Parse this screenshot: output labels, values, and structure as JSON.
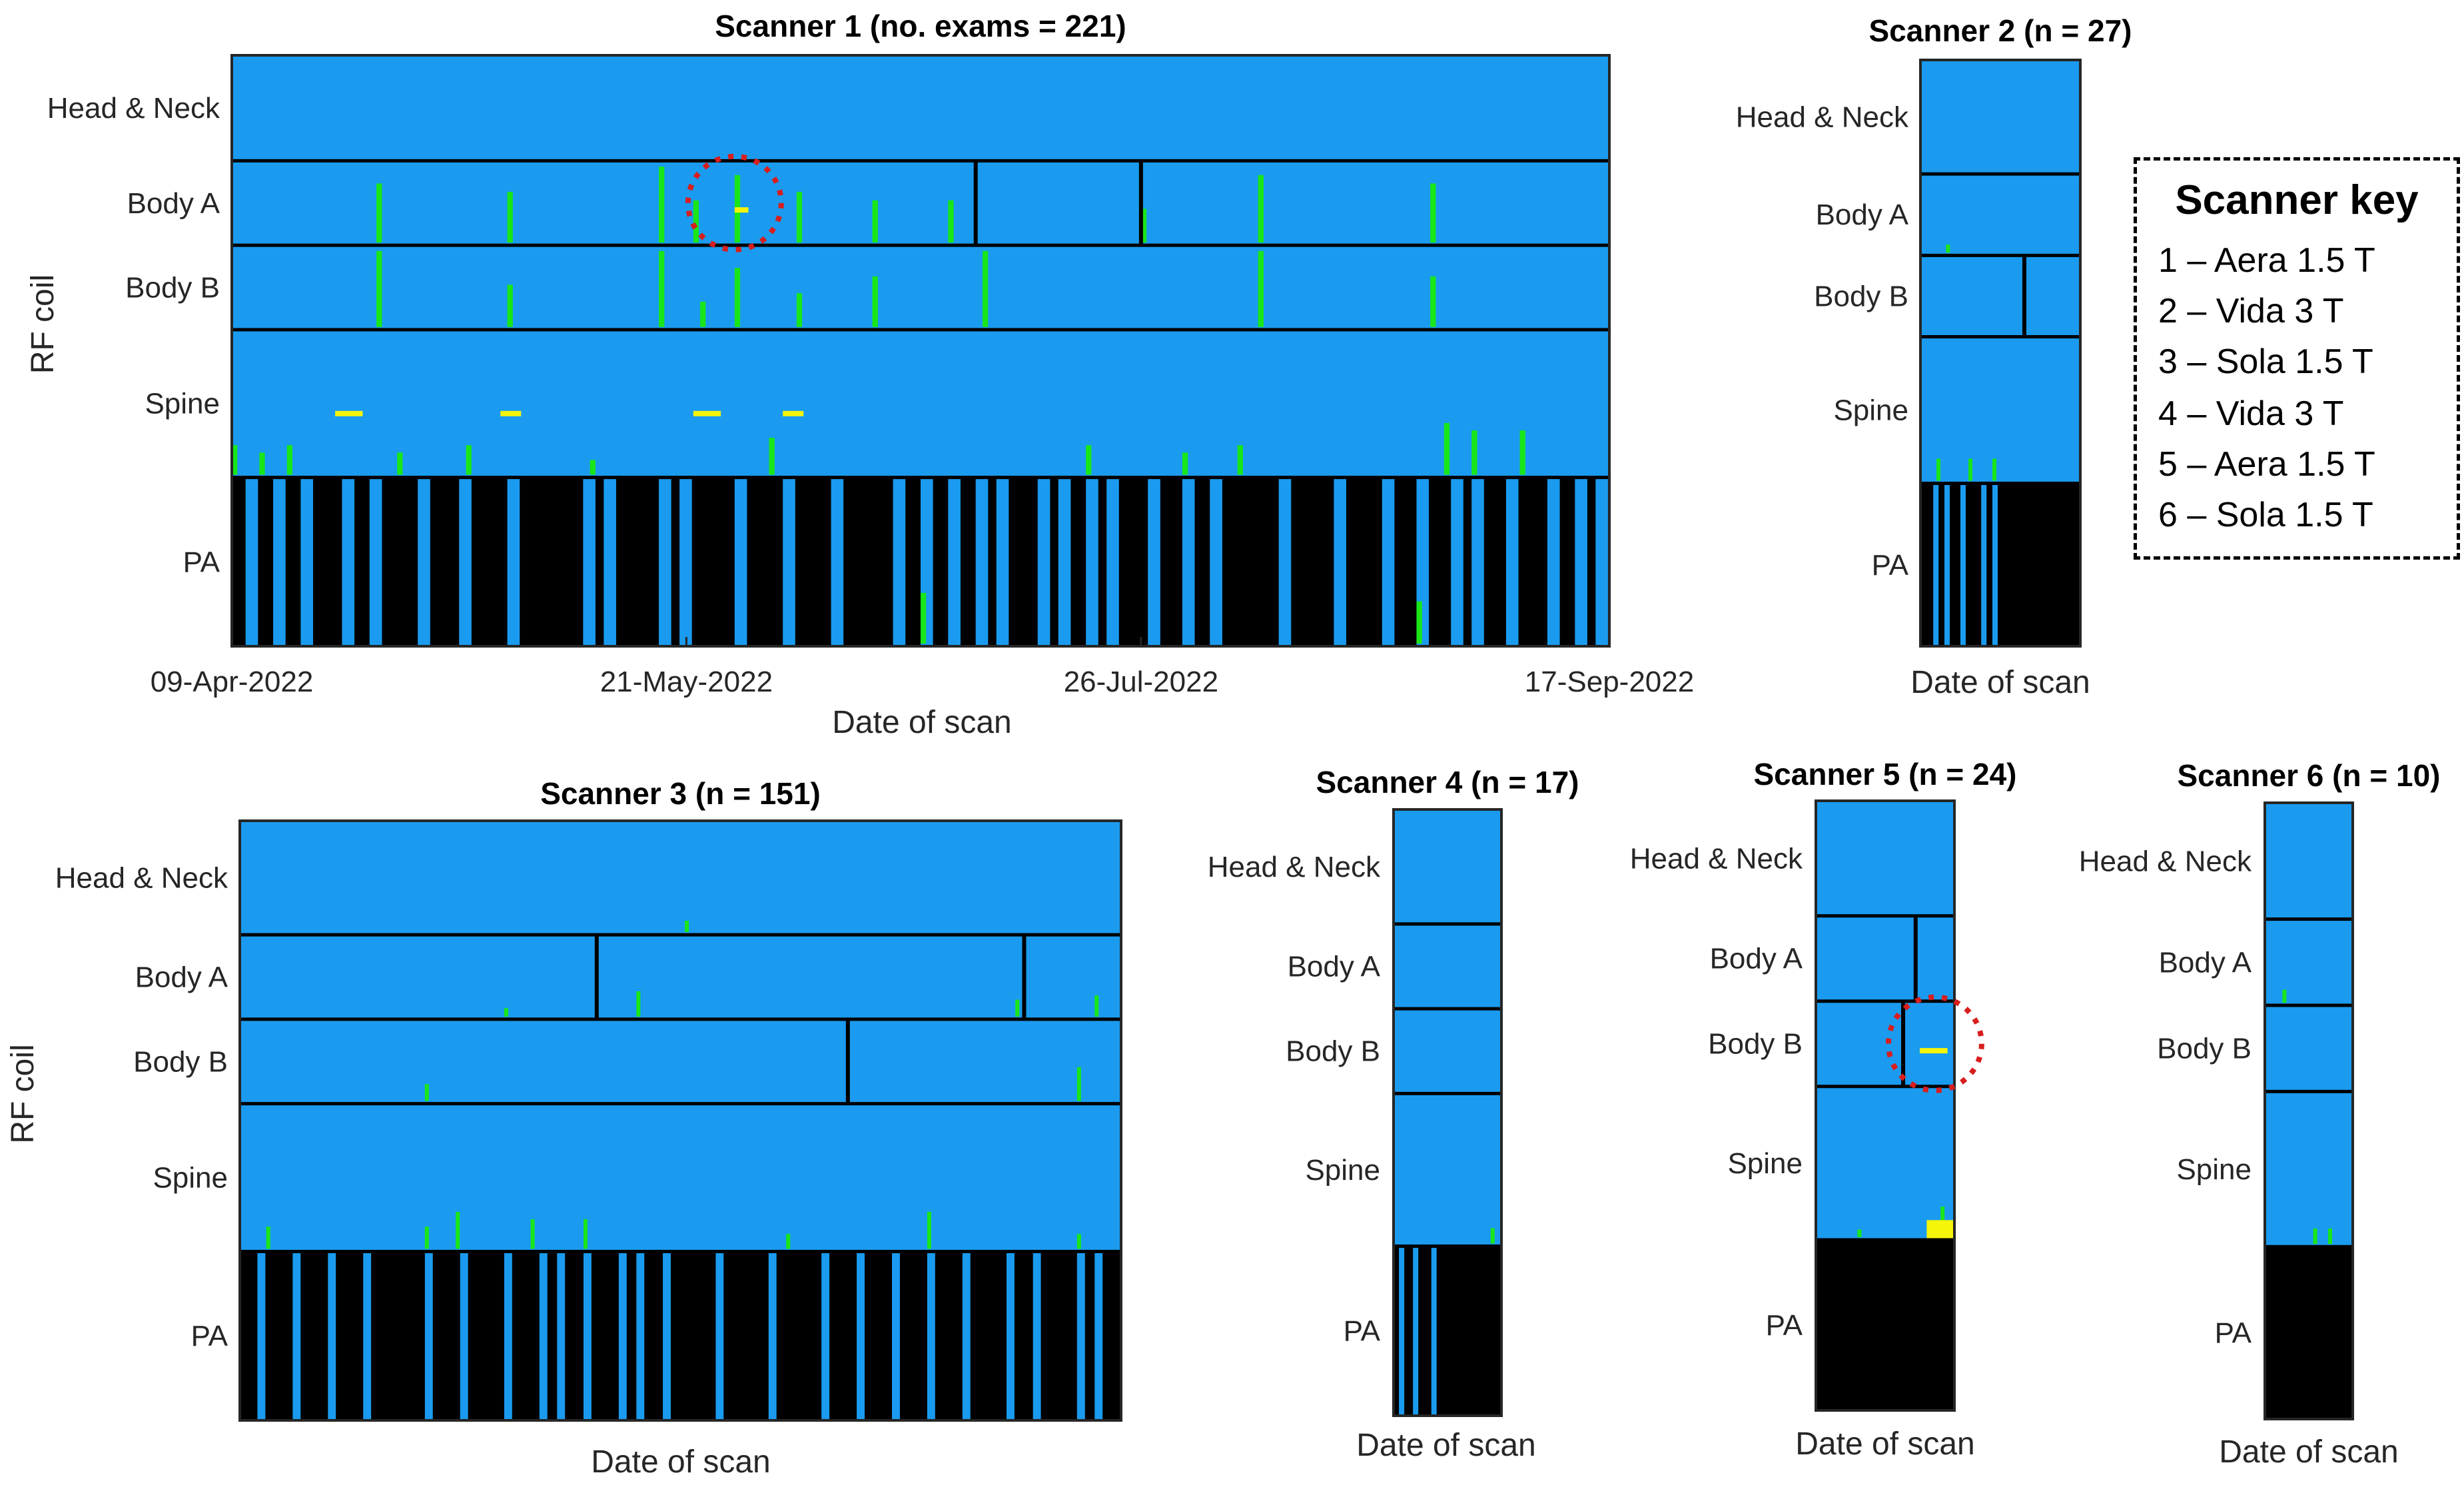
{
  "colors": {
    "background": "#1a9bef",
    "pa_background": "#000000",
    "event_green": "#19e619",
    "event_yellow": "#f5f50a",
    "divider": "#000000",
    "highlight_circle": "#d81e1e"
  },
  "chart_data": [
    {
      "type": "heatmap",
      "panel": "scanner-1",
      "title": "Scanner 1 (no. exams = 221)",
      "xlabel": "Date of scan",
      "ylabel": "RF coil",
      "rows": [
        "Head & Neck",
        "Body A",
        "Body B",
        "Spine",
        "PA"
      ],
      "row_weights": [
        1.25,
        1,
        1,
        1.75,
        2
      ],
      "x_ticks": [
        "09-Apr-2022",
        "21-May-2022",
        "26-Jul-2022",
        "17-Sep-2022"
      ],
      "x_tick_positions": [
        0,
        0.33,
        0.66,
        1.0
      ],
      "n_exams": 221,
      "pa_blue_stripes": [
        0.01,
        0.03,
        0.05,
        0.08,
        0.1,
        0.135,
        0.165,
        0.2,
        0.255,
        0.27,
        0.31,
        0.325,
        0.365,
        0.4,
        0.435,
        0.48,
        0.5,
        0.52,
        0.54,
        0.555,
        0.585,
        0.6,
        0.62,
        0.635,
        0.665,
        0.69,
        0.71,
        0.76,
        0.8,
        0.835,
        0.86,
        0.885,
        0.9,
        0.925,
        0.955,
        0.975,
        0.99
      ],
      "sub_dividers": [
        {
          "row": 1,
          "x": 0.54
        },
        {
          "row": 1,
          "x": 0.66
        }
      ],
      "green_marks": [
        {
          "row": 1,
          "x": 0.105,
          "h": 0.7
        },
        {
          "row": 2,
          "x": 0.105,
          "h": 0.9
        },
        {
          "row": 1,
          "x": 0.2,
          "h": 0.6
        },
        {
          "row": 2,
          "x": 0.2,
          "h": 0.5
        },
        {
          "row": 1,
          "x": 0.31,
          "h": 0.9
        },
        {
          "row": 2,
          "x": 0.31,
          "h": 0.9
        },
        {
          "row": 1,
          "x": 0.335,
          "h": 0.5
        },
        {
          "row": 2,
          "x": 0.34,
          "h": 0.3
        },
        {
          "row": 1,
          "x": 0.365,
          "h": 0.8
        },
        {
          "row": 2,
          "x": 0.365,
          "h": 0.7
        },
        {
          "row": 1,
          "x": 0.41,
          "h": 0.6
        },
        {
          "row": 2,
          "x": 0.41,
          "h": 0.4
        },
        {
          "row": 1,
          "x": 0.465,
          "h": 0.5
        },
        {
          "row": 2,
          "x": 0.465,
          "h": 0.6
        },
        {
          "row": 1,
          "x": 0.52,
          "h": 0.5
        },
        {
          "row": 2,
          "x": 0.545,
          "h": 0.9
        },
        {
          "row": 1,
          "x": 0.66,
          "h": 0.4
        },
        {
          "row": 1,
          "x": 0.745,
          "h": 0.8
        },
        {
          "row": 2,
          "x": 0.745,
          "h": 0.9
        },
        {
          "row": 1,
          "x": 0.87,
          "h": 0.7
        },
        {
          "row": 2,
          "x": 0.87,
          "h": 0.6
        },
        {
          "row": 3,
          "x": 0.0,
          "h": 0.2
        },
        {
          "row": 3,
          "x": 0.02,
          "h": 0.15
        },
        {
          "row": 3,
          "x": 0.04,
          "h": 0.2
        },
        {
          "row": 3,
          "x": 0.12,
          "h": 0.15
        },
        {
          "row": 3,
          "x": 0.17,
          "h": 0.2
        },
        {
          "row": 3,
          "x": 0.26,
          "h": 0.1
        },
        {
          "row": 3,
          "x": 0.39,
          "h": 0.25
        },
        {
          "row": 3,
          "x": 0.62,
          "h": 0.2
        },
        {
          "row": 3,
          "x": 0.69,
          "h": 0.15
        },
        {
          "row": 3,
          "x": 0.73,
          "h": 0.2
        },
        {
          "row": 3,
          "x": 0.88,
          "h": 0.35
        },
        {
          "row": 3,
          "x": 0.9,
          "h": 0.3
        },
        {
          "row": 3,
          "x": 0.935,
          "h": 0.3
        },
        {
          "row": 4,
          "x": 0.5,
          "h": 0.3
        },
        {
          "row": 4,
          "x": 0.86,
          "h": 0.25
        }
      ],
      "yellow_marks": [
        {
          "row": 1,
          "x": 0.365,
          "w": 0.01
        },
        {
          "row": 3,
          "x": 0.075,
          "w": 0.02
        },
        {
          "row": 3,
          "x": 0.195,
          "w": 0.015
        },
        {
          "row": 3,
          "x": 0.335,
          "w": 0.02
        },
        {
          "row": 3,
          "x": 0.4,
          "w": 0.015
        }
      ],
      "highlight": {
        "row": 1,
        "x": 0.365
      }
    },
    {
      "type": "heatmap",
      "panel": "scanner-2",
      "title": "Scanner 2 (n = 27)",
      "xlabel": "Date of scan",
      "rows": [
        "Head & Neck",
        "Body A",
        "Body B",
        "Spine",
        "PA"
      ],
      "row_weights": [
        1.4,
        1,
        1,
        1.8,
        2
      ],
      "n_exams": 27,
      "pa_blue_stripes": [
        0.08,
        0.15,
        0.25,
        0.38,
        0.45
      ],
      "sub_dividers": [
        {
          "row": 2,
          "x": 0.65
        }
      ],
      "green_marks": [
        {
          "row": 1,
          "x": 0.16,
          "h": 0.1
        },
        {
          "row": 3,
          "x": 0.1,
          "h": 0.15
        },
        {
          "row": 3,
          "x": 0.3,
          "h": 0.15
        },
        {
          "row": 3,
          "x": 0.45,
          "h": 0.15
        }
      ],
      "yellow_marks": []
    },
    {
      "type": "heatmap",
      "panel": "scanner-3",
      "title": "Scanner 3 (n = 151)",
      "xlabel": "Date of scan",
      "ylabel": "RF coil",
      "rows": [
        "Head & Neck",
        "Body A",
        "Body B",
        "Spine",
        "PA"
      ],
      "row_weights": [
        1.35,
        1,
        1,
        1.75,
        2
      ],
      "n_exams": 151,
      "pa_blue_stripes": [
        0.02,
        0.06,
        0.1,
        0.14,
        0.21,
        0.25,
        0.3,
        0.34,
        0.36,
        0.39,
        0.43,
        0.45,
        0.48,
        0.54,
        0.6,
        0.66,
        0.7,
        0.74,
        0.78,
        0.82,
        0.87,
        0.9,
        0.95,
        0.97
      ],
      "sub_dividers": [
        {
          "row": 1,
          "x": 0.405
        },
        {
          "row": 1,
          "x": 0.89
        },
        {
          "row": 2,
          "x": 0.69
        }
      ],
      "green_marks": [
        {
          "row": 0,
          "x": 0.505,
          "h": 0.1
        },
        {
          "row": 1,
          "x": 0.3,
          "h": 0.1
        },
        {
          "row": 1,
          "x": 0.45,
          "h": 0.3
        },
        {
          "row": 1,
          "x": 0.88,
          "h": 0.2
        },
        {
          "row": 1,
          "x": 0.97,
          "h": 0.25
        },
        {
          "row": 2,
          "x": 0.21,
          "h": 0.2
        },
        {
          "row": 2,
          "x": 0.95,
          "h": 0.4
        },
        {
          "row": 3,
          "x": 0.21,
          "h": 0.15
        },
        {
          "row": 3,
          "x": 0.03,
          "h": 0.15
        },
        {
          "row": 3,
          "x": 0.245,
          "h": 0.25
        },
        {
          "row": 3,
          "x": 0.33,
          "h": 0.2
        },
        {
          "row": 3,
          "x": 0.39,
          "h": 0.2
        },
        {
          "row": 3,
          "x": 0.62,
          "h": 0.1
        },
        {
          "row": 3,
          "x": 0.78,
          "h": 0.25
        },
        {
          "row": 3,
          "x": 0.95,
          "h": 0.1
        }
      ],
      "yellow_marks": []
    },
    {
      "type": "heatmap",
      "panel": "scanner-4",
      "title": "Scanner 4 (n = 17)",
      "xlabel": "Date of scan",
      "rows": [
        "Head & Neck",
        "Body A",
        "Body B",
        "Spine",
        "PA"
      ],
      "row_weights": [
        1.35,
        1,
        1,
        1.8,
        2
      ],
      "n_exams": 17,
      "pa_blue_stripes": [
        0.05,
        0.18,
        0.35
      ],
      "sub_dividers": [],
      "green_marks": [
        {
          "row": 3,
          "x": 0.9,
          "h": 0.1
        }
      ],
      "yellow_marks": []
    },
    {
      "type": "heatmap",
      "panel": "scanner-5",
      "title": "Scanner 5 (n = 24)",
      "xlabel": "Date of scan",
      "rows": [
        "Head & Neck",
        "Body A",
        "Body B",
        "Spine",
        "PA"
      ],
      "row_weights": [
        1.35,
        1,
        1,
        1.8,
        2
      ],
      "n_exams": 24,
      "pa_blue_stripes": [],
      "sub_dividers": [
        {
          "row": 1,
          "x": 0.72
        },
        {
          "row": 2,
          "x": 0.63
        }
      ],
      "green_marks": [
        {
          "row": 3,
          "x": 0.3,
          "h": 0.05
        },
        {
          "row": 3,
          "x": 0.9,
          "h": 0.2
        }
      ],
      "yellow_marks": [
        {
          "row": 2,
          "x": 0.75,
          "w": 0.2
        },
        {
          "row": 3,
          "x": 0.8,
          "w": 0.2,
          "tall": true
        }
      ],
      "highlight": {
        "row": 2,
        "x": 0.86
      }
    },
    {
      "type": "heatmap",
      "panel": "scanner-6",
      "title": "Scanner 6 (n = 10)",
      "xlabel": "Date of scan",
      "rows": [
        "Head & Neck",
        "Body A",
        "Body B",
        "Spine",
        "PA"
      ],
      "row_weights": [
        1.35,
        1,
        1,
        1.8,
        2
      ],
      "n_exams": 10,
      "pa_blue_stripes": [],
      "sub_dividers": [],
      "green_marks": [
        {
          "row": 1,
          "x": 0.2,
          "h": 0.15
        },
        {
          "row": 3,
          "x": 0.55,
          "h": 0.1
        },
        {
          "row": 3,
          "x": 0.72,
          "h": 0.1
        }
      ],
      "yellow_marks": []
    }
  ],
  "legend": {
    "title": "Scanner key",
    "items": [
      "1 – Aera 1.5 T",
      "2 – Vida 3 T",
      "3 – Sola 1.5 T",
      "4 – Vida 3 T",
      "5 – Aera 1.5 T",
      "6 – Sola 1.5 T"
    ]
  }
}
